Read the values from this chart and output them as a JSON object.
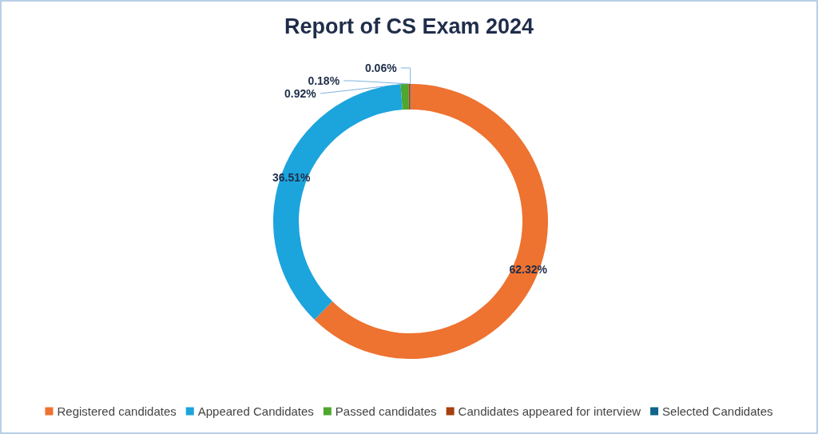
{
  "chart_data": {
    "type": "donut",
    "title": "Report of CS Exam 2024",
    "categories": [
      "Registered candidates",
      "Appeared Candidates",
      "Passed candidates",
      "Candidates appeared for interview",
      "Selected Candidates"
    ],
    "values": [
      62.32,
      36.51,
      0.92,
      0.18,
      0.06
    ],
    "colors": [
      "#ee7230",
      "#1ca4dd",
      "#4ea72e",
      "#a5400f",
      "#0f6688"
    ],
    "value_labels": [
      "62.32%",
      "36.51%",
      "0.92%",
      "0.18%",
      "0.06%"
    ],
    "legend": "bottom"
  }
}
